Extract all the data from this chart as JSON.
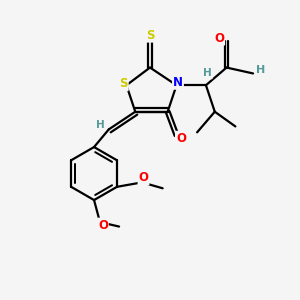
{
  "bg_color": "#f5f5f5",
  "atom_colors": {
    "S": "#cccc00",
    "N": "#0000ff",
    "O": "#ff0000",
    "C": "#000000",
    "H": "#559999"
  },
  "bond_color": "#000000",
  "bond_width": 1.6,
  "figsize": [
    3.0,
    3.0
  ],
  "dpi": 100,
  "xlim": [
    0,
    10
  ],
  "ylim": [
    0,
    10
  ]
}
